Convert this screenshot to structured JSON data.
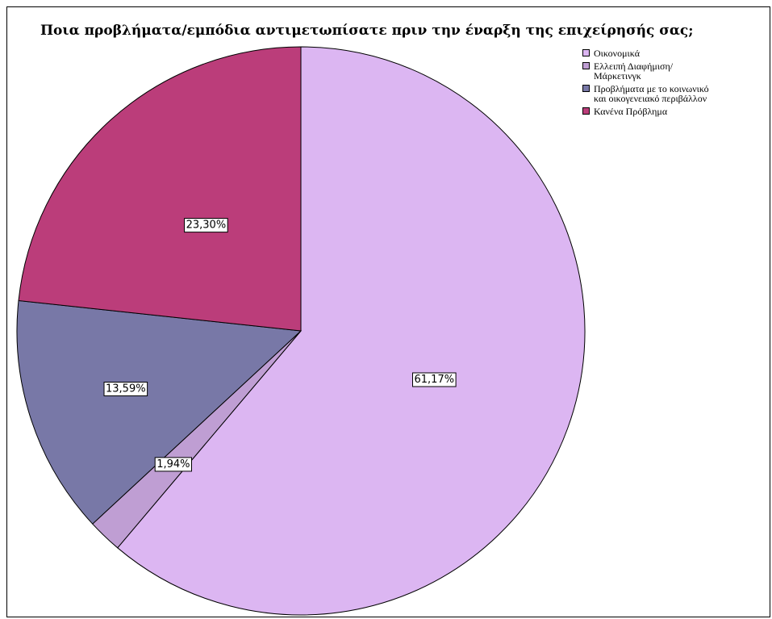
{
  "chart_data": {
    "type": "pie",
    "title": "Ποια προβλήματα/εμπόδια αντιμετωπίσατε πριν την έναρξη της επιχείρησής σας;",
    "slices": [
      {
        "name": "Οικονομικά",
        "value": 61.17,
        "label": "61,17%",
        "color": "#dcb6f2"
      },
      {
        "name": "Ελλειπή Διαφήμιση/ Μάρκετινγκ",
        "value": 1.94,
        "label": "1,94%",
        "color": "#bf9ed3"
      },
      {
        "name": "Προβλήματα με το κοινωνικό και οικογενειακό περιβάλλον",
        "value": 13.59,
        "label": "13,59%",
        "color": "#7878a7"
      },
      {
        "name": "Κανένα Πρόβλημα",
        "value": 23.3,
        "label": "23,30%",
        "color": "#bb3d7a"
      }
    ],
    "start_direction": "top",
    "direction": "clockwise",
    "legend": {
      "position": "top-right",
      "items": [
        [
          "Οικονομικά"
        ],
        [
          "Ελλειπή Διαφήμιση/",
          "Μάρκετινγκ"
        ],
        [
          "Προβλήματα με το κοινωνικό",
          "και οικογενειακό περιβάλλον"
        ],
        [
          "Κανένα Πρόβλημα"
        ]
      ]
    }
  }
}
